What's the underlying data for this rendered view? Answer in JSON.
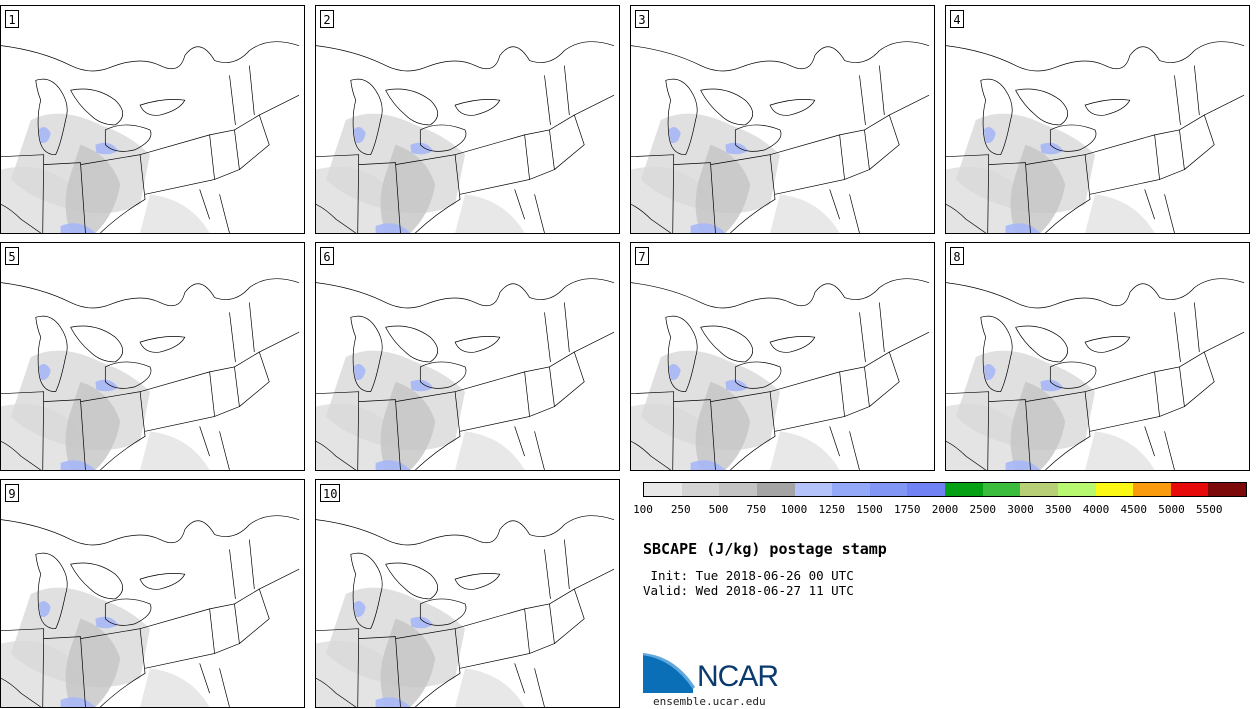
{
  "panels": [
    {
      "label": "1"
    },
    {
      "label": "2"
    },
    {
      "label": "3"
    },
    {
      "label": "4"
    },
    {
      "label": "5"
    },
    {
      "label": "6"
    },
    {
      "label": "7"
    },
    {
      "label": "8"
    },
    {
      "label": "9"
    },
    {
      "label": "10"
    }
  ],
  "legend": {
    "colors": [
      "#e8e8e8",
      "#d4d4d4",
      "#c4c4c4",
      "#a4a4a4",
      "#b4c4fa",
      "#94aaf8",
      "#8296f6",
      "#7082f4",
      "#06a015",
      "#3cbc3c",
      "#b8cf78",
      "#b8f870",
      "#fcf816",
      "#fa9b0e",
      "#e60a0a",
      "#7d0a0a"
    ],
    "ticks": [
      "100",
      "250",
      "500",
      "750",
      "1000",
      "1250",
      "1500",
      "1750",
      "2000",
      "2500",
      "3000",
      "3500",
      "4000",
      "4500",
      "5000",
      "5500"
    ]
  },
  "title": "SBCAPE (J/kg) postage stamp",
  "init_line": " Init: Tue 2018-06-26 00 UTC",
  "valid_line": "Valid: Wed 2018-06-27 11 UTC",
  "logo": {
    "text": "NCAR",
    "colors": {
      "blue": "#0b6fb8",
      "navy": "#0b3a6e"
    }
  },
  "site": "ensemble.ucar.edu"
}
